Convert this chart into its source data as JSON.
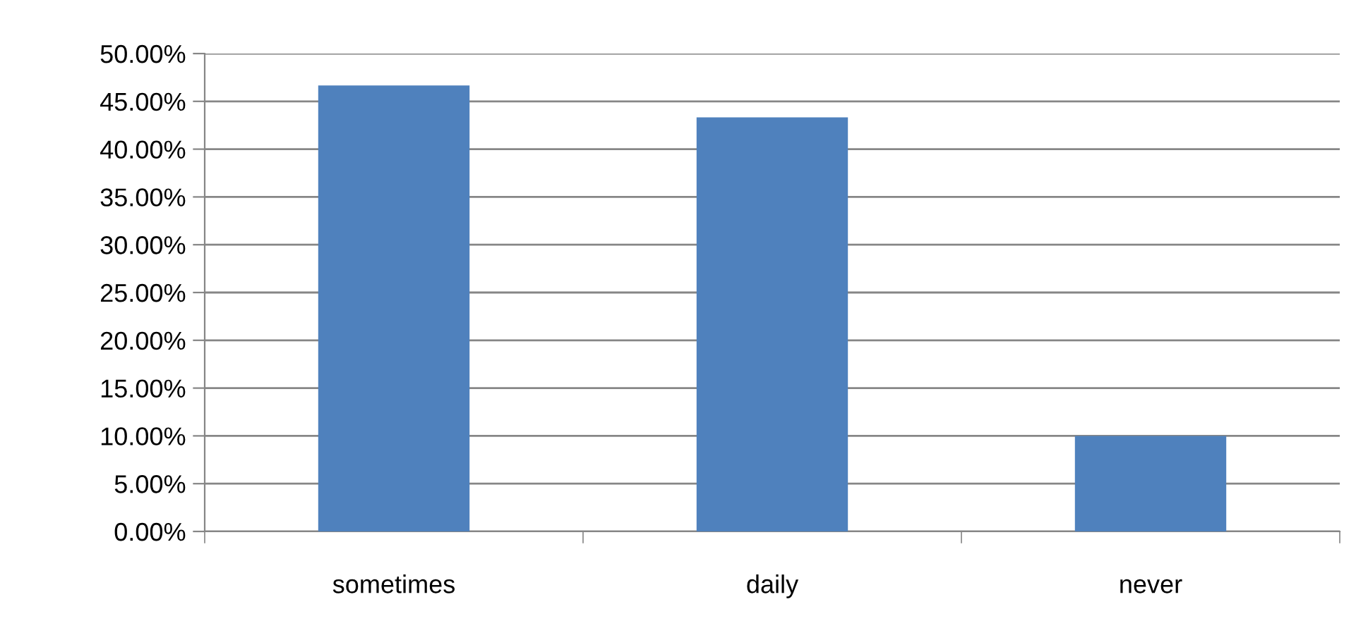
{
  "chart_data": {
    "type": "bar",
    "categories": [
      "sometimes",
      "daily",
      "never"
    ],
    "values": [
      46.67,
      43.33,
      10.0
    ],
    "color": "#4f81bd",
    "ylim": [
      0,
      50
    ],
    "yticks": [
      {
        "value": 0,
        "label": "0.00%"
      },
      {
        "value": 5,
        "label": "5.00%"
      },
      {
        "value": 10,
        "label": "10.00%"
      },
      {
        "value": 15,
        "label": "15.00%"
      },
      {
        "value": 20,
        "label": "20.00%"
      },
      {
        "value": 25,
        "label": "25.00%"
      },
      {
        "value": 30,
        "label": "30.00%"
      },
      {
        "value": 35,
        "label": "35.00%"
      },
      {
        "value": 40,
        "label": "40.00%"
      },
      {
        "value": 45,
        "label": "45.00%"
      },
      {
        "value": 50,
        "label": "50.00%"
      }
    ],
    "grid": "y"
  }
}
